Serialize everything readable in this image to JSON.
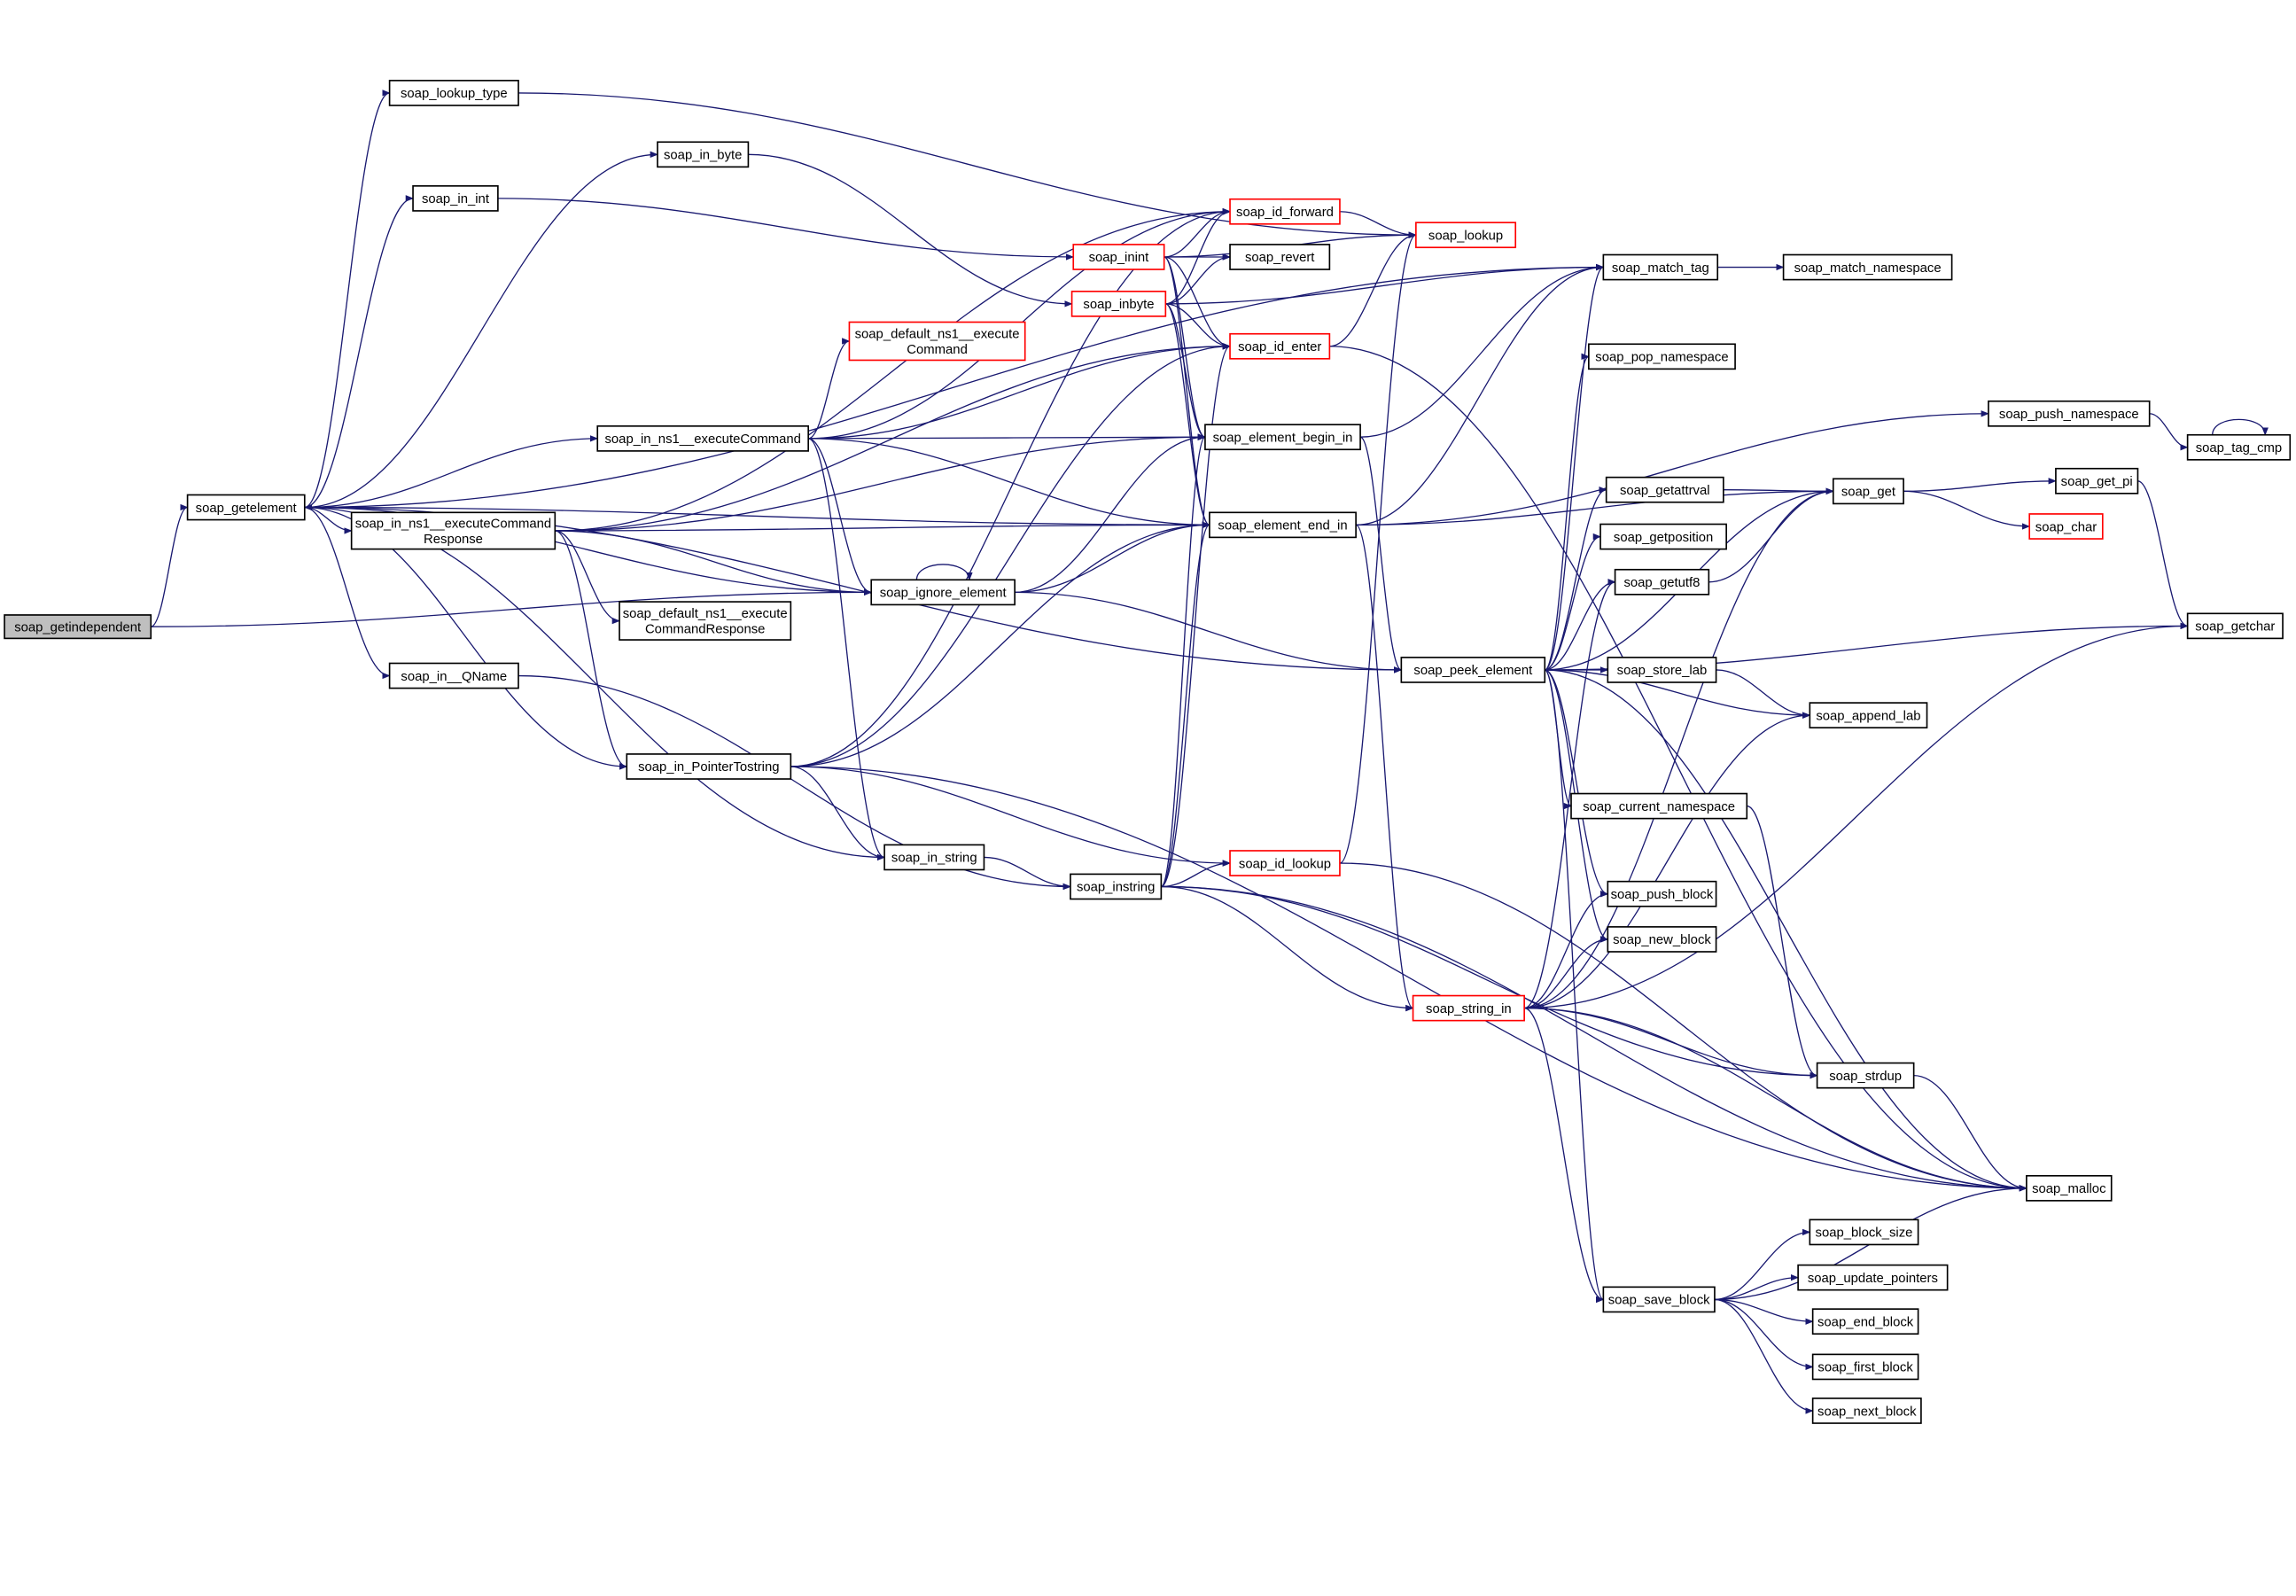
{
  "colors": {
    "edge": "#191970",
    "node_border": "#000000",
    "node_border_truncated": "#ff0000",
    "node_fill": "#ffffff",
    "root_fill": "#bfbfbf",
    "background": "#ffffff"
  },
  "nodes": [
    {
      "id": "getindependent",
      "lines": [
        "soap_getindependent"
      ],
      "root": true
    },
    {
      "id": "getelement",
      "lines": [
        "soap_getelement"
      ]
    },
    {
      "id": "lookup_type",
      "lines": [
        "soap_lookup_type"
      ]
    },
    {
      "id": "in_int",
      "lines": [
        "soap_in_int"
      ]
    },
    {
      "id": "in_byte",
      "lines": [
        "soap_in_byte"
      ]
    },
    {
      "id": "in_exec",
      "lines": [
        "soap_in_ns1__executeCommand"
      ]
    },
    {
      "id": "in_exec_resp",
      "lines": [
        "soap_in_ns1__executeCommand",
        "Response"
      ]
    },
    {
      "id": "in_qname",
      "lines": [
        "soap_in__QName"
      ]
    },
    {
      "id": "default_exec_resp",
      "lines": [
        "soap_default_ns1__execute",
        "CommandResponse"
      ]
    },
    {
      "id": "ignore_element",
      "lines": [
        "soap_ignore_element"
      ]
    },
    {
      "id": "in_ptr",
      "lines": [
        "soap_in_PointerTostring"
      ]
    },
    {
      "id": "in_string",
      "lines": [
        "soap_in_string"
      ]
    },
    {
      "id": "instring",
      "lines": [
        "soap_instring"
      ]
    },
    {
      "id": "default_exec",
      "lines": [
        "soap_default_ns1__execute",
        "Command"
      ],
      "truncated": true
    },
    {
      "id": "inint",
      "lines": [
        "soap_inint"
      ],
      "truncated": true
    },
    {
      "id": "inbyte",
      "lines": [
        "soap_inbyte"
      ],
      "truncated": true
    },
    {
      "id": "id_forward",
      "lines": [
        "soap_id_forward"
      ],
      "truncated": true
    },
    {
      "id": "revert",
      "lines": [
        "soap_revert"
      ]
    },
    {
      "id": "id_enter",
      "lines": [
        "soap_id_enter"
      ],
      "truncated": true
    },
    {
      "id": "element_begin_in",
      "lines": [
        "soap_element_begin_in"
      ]
    },
    {
      "id": "element_end_in",
      "lines": [
        "soap_element_end_in"
      ]
    },
    {
      "id": "id_lookup",
      "lines": [
        "soap_id_lookup"
      ],
      "truncated": true
    },
    {
      "id": "lookup",
      "lines": [
        "soap_lookup"
      ],
      "truncated": true
    },
    {
      "id": "match_tag",
      "lines": [
        "soap_match_tag"
      ]
    },
    {
      "id": "match_namespace",
      "lines": [
        "soap_match_namespace"
      ]
    },
    {
      "id": "pop_namespace",
      "lines": [
        "soap_pop_namespace"
      ]
    },
    {
      "id": "push_namespace",
      "lines": [
        "soap_push_namespace"
      ]
    },
    {
      "id": "tag_cmp",
      "lines": [
        "soap_tag_cmp"
      ]
    },
    {
      "id": "getattrval",
      "lines": [
        "soap_getattrval"
      ]
    },
    {
      "id": "get",
      "lines": [
        "soap_get"
      ]
    },
    {
      "id": "get_pi",
      "lines": [
        "soap_get_pi"
      ]
    },
    {
      "id": "char",
      "lines": [
        "soap_char"
      ],
      "truncated": true
    },
    {
      "id": "getposition",
      "lines": [
        "soap_getposition"
      ]
    },
    {
      "id": "getutf8",
      "lines": [
        "soap_getutf8"
      ]
    },
    {
      "id": "getchar",
      "lines": [
        "soap_getchar"
      ]
    },
    {
      "id": "peek_element",
      "lines": [
        "soap_peek_element"
      ]
    },
    {
      "id": "store_lab",
      "lines": [
        "soap_store_lab"
      ]
    },
    {
      "id": "append_lab",
      "lines": [
        "soap_append_lab"
      ]
    },
    {
      "id": "current_namespace",
      "lines": [
        "soap_current_namespace"
      ]
    },
    {
      "id": "push_block",
      "lines": [
        "soap_push_block"
      ]
    },
    {
      "id": "new_block",
      "lines": [
        "soap_new_block"
      ]
    },
    {
      "id": "string_in",
      "lines": [
        "soap_string_in"
      ],
      "truncated": true
    },
    {
      "id": "strdup",
      "lines": [
        "soap_strdup"
      ]
    },
    {
      "id": "malloc",
      "lines": [
        "soap_malloc"
      ]
    },
    {
      "id": "block_size",
      "lines": [
        "soap_block_size"
      ]
    },
    {
      "id": "save_block",
      "lines": [
        "soap_save_block"
      ]
    },
    {
      "id": "update_pointers",
      "lines": [
        "soap_update_pointers"
      ]
    },
    {
      "id": "end_block",
      "lines": [
        "soap_end_block"
      ]
    },
    {
      "id": "first_block",
      "lines": [
        "soap_first_block"
      ]
    },
    {
      "id": "next_block",
      "lines": [
        "soap_next_block"
      ]
    }
  ],
  "edges": [
    [
      "getindependent",
      "getelement"
    ],
    [
      "getindependent",
      "ignore_element"
    ],
    [
      "getelement",
      "lookup_type"
    ],
    [
      "getelement",
      "in_int"
    ],
    [
      "getelement",
      "in_byte"
    ],
    [
      "getelement",
      "in_exec"
    ],
    [
      "getelement",
      "in_exec_resp"
    ],
    [
      "getelement",
      "in_qname"
    ],
    [
      "getelement",
      "in_ptr"
    ],
    [
      "getelement",
      "in_string"
    ],
    [
      "getelement",
      "match_tag"
    ],
    [
      "getelement",
      "peek_element"
    ],
    [
      "getelement",
      "element_end_in"
    ],
    [
      "lookup_type",
      "lookup"
    ],
    [
      "in_int",
      "inint"
    ],
    [
      "in_byte",
      "inbyte"
    ],
    [
      "inint",
      "id_forward"
    ],
    [
      "inint",
      "revert"
    ],
    [
      "inint",
      "id_enter"
    ],
    [
      "inint",
      "element_begin_in"
    ],
    [
      "inint",
      "element_end_in"
    ],
    [
      "inint",
      "lookup"
    ],
    [
      "inbyte",
      "id_forward"
    ],
    [
      "inbyte",
      "revert"
    ],
    [
      "inbyte",
      "id_enter"
    ],
    [
      "inbyte",
      "element_begin_in"
    ],
    [
      "inbyte",
      "element_end_in"
    ],
    [
      "inbyte",
      "match_tag"
    ],
    [
      "in_exec",
      "default_exec"
    ],
    [
      "in_exec",
      "id_enter"
    ],
    [
      "in_exec",
      "element_begin_in"
    ],
    [
      "in_exec",
      "element_end_in"
    ],
    [
      "in_exec",
      "ignore_element"
    ],
    [
      "in_exec",
      "in_string"
    ],
    [
      "in_exec",
      "id_forward"
    ],
    [
      "in_exec_resp",
      "id_forward"
    ],
    [
      "in_exec_resp",
      "id_enter"
    ],
    [
      "in_exec_resp",
      "element_begin_in"
    ],
    [
      "in_exec_resp",
      "element_end_in"
    ],
    [
      "in_exec_resp",
      "ignore_element"
    ],
    [
      "in_exec_resp",
      "default_exec_resp"
    ],
    [
      "in_exec_resp",
      "in_ptr"
    ],
    [
      "ignore_element",
      "getelement"
    ],
    [
      "ignore_element",
      "ignore_element"
    ],
    [
      "ignore_element",
      "element_begin_in"
    ],
    [
      "ignore_element",
      "element_end_in"
    ],
    [
      "ignore_element",
      "peek_element"
    ],
    [
      "in_qname",
      "instring"
    ],
    [
      "in_ptr",
      "in_string"
    ],
    [
      "in_ptr",
      "id_forward"
    ],
    [
      "in_ptr",
      "id_enter"
    ],
    [
      "in_ptr",
      "element_end_in"
    ],
    [
      "in_ptr",
      "id_lookup"
    ],
    [
      "in_ptr",
      "malloc"
    ],
    [
      "in_string",
      "instring"
    ],
    [
      "instring",
      "id_lookup"
    ],
    [
      "instring",
      "id_enter"
    ],
    [
      "instring",
      "element_begin_in"
    ],
    [
      "instring",
      "element_end_in"
    ],
    [
      "instring",
      "string_in"
    ],
    [
      "instring",
      "strdup"
    ],
    [
      "instring",
      "malloc"
    ],
    [
      "id_forward",
      "lookup"
    ],
    [
      "id_enter",
      "lookup"
    ],
    [
      "id_enter",
      "malloc"
    ],
    [
      "id_lookup",
      "lookup"
    ],
    [
      "id_lookup",
      "malloc"
    ],
    [
      "element_begin_in",
      "match_tag"
    ],
    [
      "element_begin_in",
      "peek_element"
    ],
    [
      "element_end_in",
      "match_tag"
    ],
    [
      "element_end_in",
      "get"
    ],
    [
      "element_end_in",
      "push_namespace"
    ],
    [
      "element_end_in",
      "string_in"
    ],
    [
      "match_tag",
      "match_namespace"
    ],
    [
      "peek_element",
      "match_tag"
    ],
    [
      "peek_element",
      "pop_namespace"
    ],
    [
      "peek_element",
      "getattrval"
    ],
    [
      "peek_element",
      "get"
    ],
    [
      "peek_element",
      "getposition"
    ],
    [
      "peek_element",
      "getutf8"
    ],
    [
      "peek_element",
      "getchar"
    ],
    [
      "peek_element",
      "store_lab"
    ],
    [
      "peek_element",
      "append_lab"
    ],
    [
      "peek_element",
      "current_namespace"
    ],
    [
      "peek_element",
      "push_block"
    ],
    [
      "peek_element",
      "new_block"
    ],
    [
      "peek_element",
      "save_block"
    ],
    [
      "peek_element",
      "malloc"
    ],
    [
      "getattrval",
      "get"
    ],
    [
      "getutf8",
      "get"
    ],
    [
      "get",
      "get_pi"
    ],
    [
      "get",
      "char"
    ],
    [
      "get_pi",
      "getchar"
    ],
    [
      "push_namespace",
      "tag_cmp"
    ],
    [
      "tag_cmp",
      "tag_cmp"
    ],
    [
      "store_lab",
      "append_lab"
    ],
    [
      "current_namespace",
      "strdup"
    ],
    [
      "string_in",
      "getutf8"
    ],
    [
      "string_in",
      "push_block"
    ],
    [
      "string_in",
      "new_block"
    ],
    [
      "string_in",
      "get"
    ],
    [
      "string_in",
      "append_lab"
    ],
    [
      "string_in",
      "strdup"
    ],
    [
      "string_in",
      "save_block"
    ],
    [
      "string_in",
      "malloc"
    ],
    [
      "string_in",
      "getchar"
    ],
    [
      "strdup",
      "malloc"
    ],
    [
      "save_block",
      "block_size"
    ],
    [
      "save_block",
      "update_pointers"
    ],
    [
      "save_block",
      "end_block"
    ],
    [
      "save_block",
      "first_block"
    ],
    [
      "save_block",
      "next_block"
    ],
    [
      "save_block",
      "malloc"
    ]
  ]
}
